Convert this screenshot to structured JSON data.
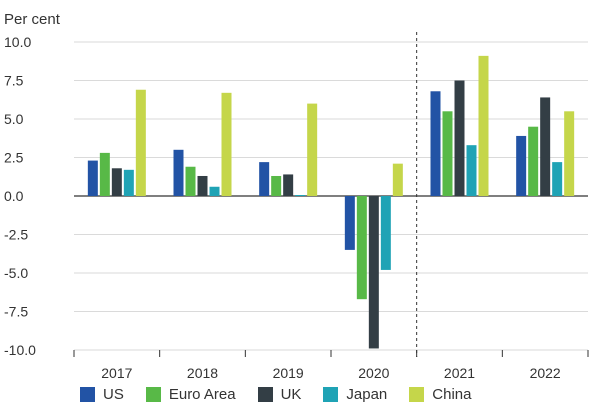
{
  "chart_data": {
    "type": "bar",
    "ylabel": "Per cent",
    "categories": [
      "2017",
      "2018",
      "2019",
      "2020",
      "2021",
      "2022"
    ],
    "yticks": [
      "10.0",
      "7.5",
      "5.0",
      "2.5",
      "0.0",
      "-2.5",
      "-5.0",
      "-7.5",
      "-10.0"
    ],
    "ylim": [
      -10,
      10
    ],
    "forecast_divider_after": "2020",
    "series": [
      {
        "name": "US",
        "color": "#2253a5",
        "values": [
          2.3,
          3.0,
          2.2,
          -3.5,
          6.8,
          3.9
        ]
      },
      {
        "name": "Euro Area",
        "color": "#58b947",
        "values": [
          2.8,
          1.9,
          1.3,
          -6.7,
          5.5,
          4.5
        ]
      },
      {
        "name": "UK",
        "color": "#333e45",
        "values": [
          1.8,
          1.3,
          1.4,
          -9.9,
          7.5,
          6.4
        ]
      },
      {
        "name": "Japan",
        "color": "#1fa3b5",
        "values": [
          1.7,
          0.6,
          0.0,
          -4.8,
          3.3,
          2.2
        ]
      },
      {
        "name": "China",
        "color": "#c5d64a",
        "values": [
          6.9,
          6.7,
          6.0,
          2.1,
          9.1,
          5.5
        ]
      }
    ]
  }
}
